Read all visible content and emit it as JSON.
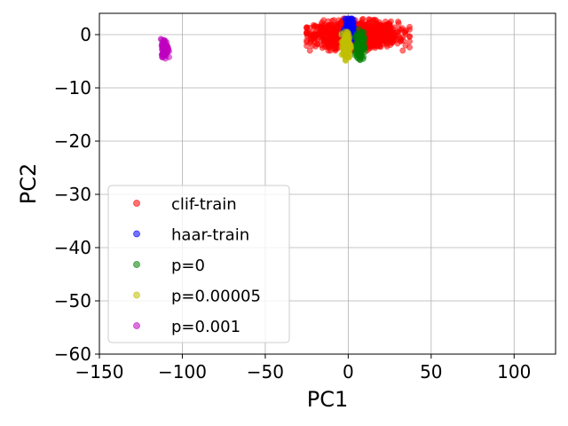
{
  "chart_data": {
    "type": "scatter",
    "title": "",
    "xlabel": "PC1",
    "ylabel": "PC2",
    "xlim": [
      -150,
      125
    ],
    "ylim": [
      -60,
      4
    ],
    "xticks": [
      -150,
      -100,
      -50,
      0,
      50,
      100
    ],
    "yticks": [
      0,
      -10,
      -20,
      -30,
      -40,
      -50,
      -60
    ],
    "xtick_labels": [
      "−150",
      "−100",
      "−50",
      "0",
      "50",
      "100"
    ],
    "ytick_labels": [
      "0",
      "−10",
      "−20",
      "−30",
      "−40",
      "−50",
      "−60"
    ],
    "grid": true,
    "legend_position": "lower-left",
    "series": [
      {
        "name": "clif-train",
        "color": "#ff0000",
        "x_range": [
          -25,
          37
        ],
        "y_range": [
          -3,
          3
        ],
        "center": [
          5,
          0
        ],
        "count": 1200
      },
      {
        "name": "haar-train",
        "color": "#0000ff",
        "x_range": [
          -3,
          5
        ],
        "y_range": [
          -2,
          3
        ],
        "center": [
          0.5,
          0.5
        ],
        "count": 180
      },
      {
        "name": "p=0",
        "color": "#008000",
        "x_range": [
          4,
          10
        ],
        "y_range": [
          -5,
          1
        ],
        "center": [
          7,
          -2
        ],
        "count": 180
      },
      {
        "name": "p=0.00005",
        "color": "#bfbf00",
        "x_range": [
          -4,
          2
        ],
        "y_range": [
          -5,
          1
        ],
        "center": [
          -1,
          -2
        ],
        "count": 180
      },
      {
        "name": "p=0.001",
        "color": "#bf00bf",
        "x_range": [
          -113,
          -108
        ],
        "y_range": [
          -4.5,
          -0.5
        ],
        "center": [
          -110.5,
          -2.5
        ],
        "count": 120
      }
    ]
  }
}
